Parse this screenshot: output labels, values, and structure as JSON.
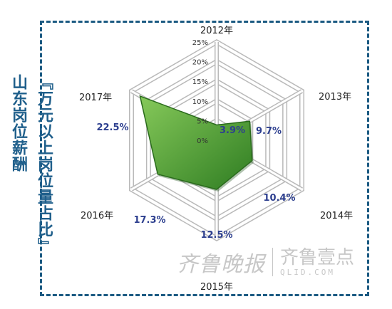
{
  "title": {
    "line1": "『万元以上岗位量占比』",
    "line2": "山东岗位薪酬"
  },
  "watermark": {
    "brand_cn": "齐鲁晚报",
    "app_name": "齐鲁壹点",
    "site": "QLID.COM"
  },
  "colors": {
    "frame": "#1b5a82",
    "title": "#1f5f8b",
    "fill_light": "#86c95a",
    "fill_dark": "#2f7d22",
    "value_label": "#2d3f8f",
    "grid": "#b9b9b9"
  },
  "chart_data": {
    "type": "radar",
    "axes": [
      "2012年",
      "2013年",
      "2014年",
      "2015年",
      "2016年",
      "2017年"
    ],
    "values": [
      3.9,
      9.7,
      10.4,
      12.5,
      17.3,
      22.5
    ],
    "value_labels": [
      "3.9%",
      "9.7%",
      "10.4%",
      "12.5%",
      "17.3%",
      "22.5%"
    ],
    "r_ticks": [
      "0%",
      "5%",
      "10%",
      "15%",
      "20%",
      "25%"
    ],
    "r_range": [
      0,
      25
    ],
    "grid": true
  }
}
